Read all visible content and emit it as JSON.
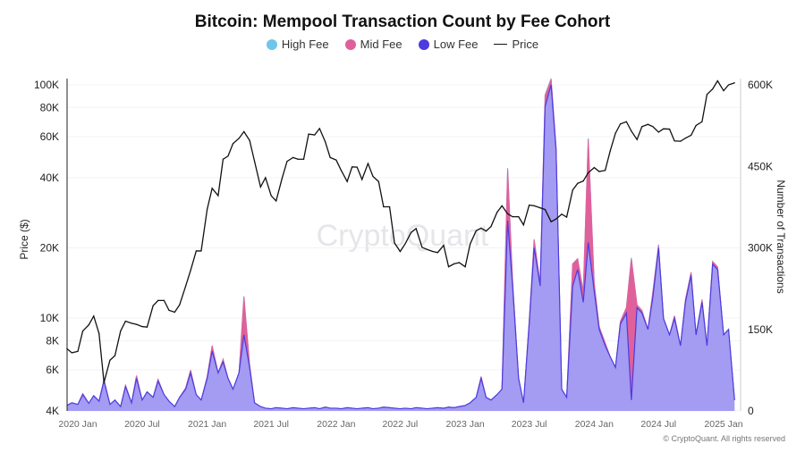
{
  "chart_data": {
    "type": "area",
    "title": "Bitcoin: Mempool Transaction Count by Fee Cohort",
    "legend": [
      {
        "name": "High Fee",
        "color": "#6ec6ea",
        "marker": "dot"
      },
      {
        "name": "Mid Fee",
        "color": "#e0609b",
        "marker": "dot"
      },
      {
        "name": "Low Fee",
        "color": "#4b3ce0",
        "marker": "dot"
      },
      {
        "name": "Price",
        "color": "#111111",
        "marker": "line"
      }
    ],
    "legend_position": "top",
    "y_left": {
      "label": "Price ($)",
      "scale": "log",
      "range": [
        4000,
        100000
      ],
      "ticks": [
        "4K",
        "6K",
        "8K",
        "10K",
        "20K",
        "40K",
        "60K",
        "80K",
        "100K"
      ],
      "tick_values": [
        4000,
        6000,
        8000,
        10000,
        20000,
        40000,
        60000,
        80000,
        100000
      ]
    },
    "y_right": {
      "label": "Number of Transactions",
      "scale": "linear",
      "range": [
        0,
        600000
      ],
      "ticks": [
        "0",
        "150K",
        "300K",
        "450K",
        "600K"
      ],
      "tick_values": [
        0,
        150000,
        300000,
        450000,
        600000
      ]
    },
    "x_ticks": [
      "2020 Jan",
      "2020 Jul",
      "2021 Jan",
      "2021 Jul",
      "2022 Jan",
      "2022 Jul",
      "2023 Jan",
      "2023 Jul",
      "2024 Jan",
      "2024 Jul",
      "2025 Jan"
    ],
    "x_tick_dates": [
      "2020-01-01",
      "2020-07-01",
      "2021-01-01",
      "2021-07-01",
      "2022-01-01",
      "2022-07-01",
      "2023-01-01",
      "2023-07-01",
      "2024-01-01",
      "2024-07-01",
      "2025-01-01"
    ],
    "grid": true,
    "x": [
      "2019-12-01",
      "2019-12-15",
      "2020-01-01",
      "2020-01-15",
      "2020-02-01",
      "2020-02-15",
      "2020-03-01",
      "2020-03-15",
      "2020-04-01",
      "2020-04-15",
      "2020-05-01",
      "2020-05-15",
      "2020-06-01",
      "2020-06-15",
      "2020-07-01",
      "2020-07-15",
      "2020-08-01",
      "2020-08-15",
      "2020-09-01",
      "2020-09-15",
      "2020-10-01",
      "2020-10-15",
      "2020-11-01",
      "2020-11-15",
      "2020-12-01",
      "2020-12-15",
      "2021-01-01",
      "2021-01-15",
      "2021-02-01",
      "2021-02-15",
      "2021-03-01",
      "2021-03-15",
      "2021-04-01",
      "2021-04-15",
      "2021-05-01",
      "2021-05-15",
      "2021-06-01",
      "2021-06-15",
      "2021-07-01",
      "2021-07-15",
      "2021-08-01",
      "2021-08-15",
      "2021-09-01",
      "2021-09-15",
      "2021-10-01",
      "2021-10-15",
      "2021-11-01",
      "2021-11-15",
      "2021-12-01",
      "2021-12-15",
      "2022-01-01",
      "2022-01-15",
      "2022-02-01",
      "2022-02-15",
      "2022-03-01",
      "2022-03-15",
      "2022-04-01",
      "2022-04-15",
      "2022-05-01",
      "2022-05-15",
      "2022-06-01",
      "2022-06-15",
      "2022-07-01",
      "2022-07-15",
      "2022-08-01",
      "2022-08-15",
      "2022-09-01",
      "2022-09-15",
      "2022-10-01",
      "2022-10-15",
      "2022-11-01",
      "2022-11-15",
      "2022-12-01",
      "2022-12-15",
      "2023-01-01",
      "2023-01-15",
      "2023-02-01",
      "2023-02-15",
      "2023-03-01",
      "2023-03-15",
      "2023-04-01",
      "2023-04-15",
      "2023-05-01",
      "2023-05-15",
      "2023-06-01",
      "2023-06-15",
      "2023-07-01",
      "2023-07-15",
      "2023-08-01",
      "2023-08-15",
      "2023-09-01",
      "2023-09-15",
      "2023-10-01",
      "2023-10-15",
      "2023-11-01",
      "2023-11-15",
      "2023-12-01",
      "2023-12-15",
      "2024-01-01",
      "2024-01-15",
      "2024-02-01",
      "2024-02-15",
      "2024-03-01",
      "2024-03-15",
      "2024-04-01",
      "2024-04-15",
      "2024-05-01",
      "2024-05-15",
      "2024-06-01",
      "2024-06-15",
      "2024-07-01",
      "2024-07-15",
      "2024-08-01",
      "2024-08-15",
      "2024-09-01",
      "2024-09-15",
      "2024-10-01",
      "2024-10-15",
      "2024-11-01",
      "2024-11-15",
      "2024-12-01",
      "2024-12-15",
      "2025-01-01",
      "2025-01-15",
      "2025-02-01"
    ],
    "series": [
      {
        "name": "Low Fee",
        "axis": "right",
        "values": [
          10000,
          15000,
          12000,
          30000,
          14000,
          28000,
          18000,
          55000,
          12000,
          20000,
          8000,
          45000,
          15000,
          60000,
          20000,
          35000,
          25000,
          55000,
          30000,
          18000,
          8000,
          25000,
          40000,
          70000,
          30000,
          20000,
          60000,
          110000,
          70000,
          90000,
          60000,
          40000,
          70000,
          140000,
          80000,
          15000,
          8000,
          5000,
          4000,
          6000,
          5000,
          4000,
          6000,
          5000,
          4000,
          5000,
          6000,
          4000,
          7000,
          5000,
          5000,
          4000,
          6000,
          5000,
          4000,
          5000,
          6000,
          4000,
          5000,
          7000,
          6000,
          5000,
          4000,
          5000,
          4000,
          6000,
          5000,
          4000,
          5000,
          6000,
          5000,
          7000,
          6000,
          8000,
          10000,
          15000,
          25000,
          60000,
          25000,
          20000,
          30000,
          40000,
          350000,
          230000,
          60000,
          15000,
          160000,
          300000,
          230000,
          560000,
          600000,
          480000,
          40000,
          25000,
          230000,
          260000,
          200000,
          310000,
          220000,
          150000,
          120000,
          100000,
          80000,
          160000,
          180000,
          20000,
          190000,
          180000,
          150000,
          210000,
          300000,
          170000,
          140000,
          170000,
          120000,
          200000,
          250000,
          140000,
          200000,
          120000,
          270000,
          260000,
          140000,
          150000,
          20000
        ]
      },
      {
        "name": "Mid Fee",
        "axis": "right",
        "values": [
          0,
          0,
          0,
          2000,
          0,
          0,
          0,
          3000,
          0,
          0,
          0,
          2000,
          0,
          5000,
          0,
          0,
          0,
          3000,
          0,
          0,
          0,
          0,
          2000,
          5000,
          0,
          0,
          3000,
          10000,
          0,
          5000,
          0,
          0,
          0,
          70000,
          5000,
          0,
          0,
          0,
          0,
          0,
          0,
          0,
          0,
          0,
          0,
          0,
          0,
          0,
          0,
          0,
          0,
          0,
          0,
          0,
          0,
          0,
          0,
          0,
          0,
          0,
          0,
          0,
          0,
          0,
          0,
          0,
          0,
          0,
          0,
          0,
          0,
          0,
          0,
          0,
          0,
          0,
          0,
          3000,
          0,
          0,
          0,
          0,
          95000,
          10000,
          0,
          0,
          5000,
          15000,
          5000,
          20000,
          10000,
          5000,
          0,
          0,
          40000,
          20000,
          20000,
          190000,
          15000,
          5000,
          5000,
          0,
          0,
          5000,
          10000,
          260000,
          5000,
          5000,
          0,
          10000,
          5000,
          0,
          0,
          5000,
          0,
          5000,
          5000,
          0,
          5000,
          0,
          5000,
          5000,
          0,
          0,
          0
        ]
      },
      {
        "name": "High Fee",
        "axis": "right",
        "values": [
          0,
          0,
          0,
          0,
          0,
          0,
          0,
          0,
          0,
          0,
          0,
          0,
          0,
          0,
          0,
          0,
          0,
          0,
          0,
          0,
          0,
          0,
          0,
          0,
          0,
          0,
          0,
          0,
          0,
          0,
          0,
          0,
          0,
          1000,
          0,
          0,
          0,
          0,
          0,
          0,
          0,
          0,
          0,
          0,
          0,
          0,
          0,
          0,
          0,
          0,
          0,
          0,
          0,
          0,
          0,
          0,
          0,
          0,
          0,
          0,
          0,
          0,
          0,
          0,
          0,
          0,
          0,
          0,
          0,
          0,
          0,
          0,
          0,
          0,
          0,
          0,
          0,
          0,
          0,
          0,
          0,
          0,
          2000,
          0,
          0,
          0,
          0,
          1000,
          0,
          2000,
          2000,
          1000,
          0,
          0,
          1000,
          0,
          0,
          2000,
          0,
          0,
          0,
          0,
          0,
          0,
          0,
          2000,
          0,
          0,
          0,
          0,
          1000,
          0,
          0,
          0,
          0,
          0,
          0,
          0,
          0,
          0,
          0,
          0,
          0,
          0,
          0
        ]
      },
      {
        "name": "Price",
        "axis": "left",
        "values": [
          7400,
          7100,
          7200,
          8800,
          9350,
          10200,
          8600,
          5300,
          6600,
          6900,
          8800,
          9700,
          9500,
          9400,
          9200,
          9150,
          11300,
          11900,
          11900,
          10800,
          10600,
          11400,
          13700,
          16000,
          19400,
          19400,
          29300,
          36000,
          33500,
          48000,
          49500,
          56000,
          59000,
          63000,
          57800,
          47000,
          36500,
          40000,
          33500,
          31800,
          39800,
          47000,
          48800,
          48000,
          48000,
          61500,
          61000,
          65000,
          57000,
          48800,
          47600,
          43000,
          38500,
          44500,
          44400,
          39300,
          46000,
          40500,
          38500,
          30000,
          30000,
          21000,
          19300,
          20800,
          23300,
          24200,
          20100,
          19700,
          19300,
          19100,
          20500,
          16600,
          17100,
          17300,
          16600,
          20800,
          23700,
          24300,
          23600,
          24700,
          28400,
          30300,
          28000,
          27200,
          27200,
          25100,
          30500,
          30300,
          29700,
          29200,
          25900,
          26600,
          27900,
          27100,
          35400,
          37800,
          38700,
          42000,
          44200,
          42500,
          43000,
          52000,
          62000,
          68000,
          69500,
          63400,
          58300,
          66200,
          67700,
          66200,
          62700,
          64800,
          64600,
          57500,
          57300,
          59100,
          60800,
          67000,
          69500,
          91000,
          96000,
          104000,
          94400,
          100000,
          102000
        ]
      }
    ]
  },
  "watermark": "CryptoQuant",
  "copyright": "© CryptoQuant. All rights reserved"
}
